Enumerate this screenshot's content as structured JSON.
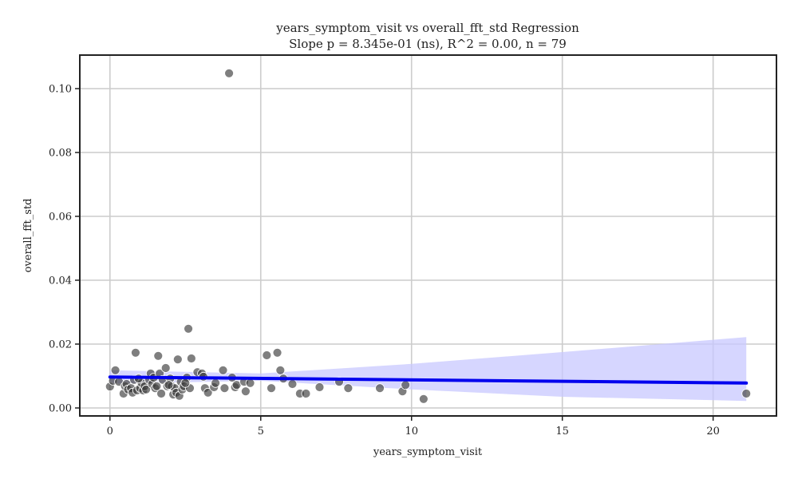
{
  "chart_data": {
    "type": "scatter",
    "title": "years_symptom_visit vs overall_fft_std Regression",
    "subtitle": "Slope p = 8.345e-01 (ns), R^2 = 0.00, n = 79",
    "xlabel": "years_symptom_visit",
    "ylabel": "overall_fft_std",
    "xlim": [
      -1.0,
      22.1
    ],
    "ylim": [
      -0.0025,
      0.1105
    ],
    "xticks": [
      0,
      5,
      10,
      15,
      20
    ],
    "yticks": [
      0.0,
      0.02,
      0.04,
      0.06,
      0.08,
      0.1
    ],
    "xtick_labels": [
      "0",
      "5",
      "10",
      "15",
      "20"
    ],
    "ytick_labels": [
      "0.00",
      "0.02",
      "0.04",
      "0.06",
      "0.08",
      "0.10"
    ],
    "grid": true,
    "points": [
      [
        0.0,
        0.0067
      ],
      [
        0.1,
        0.0085
      ],
      [
        0.18,
        0.0118
      ],
      [
        0.3,
        0.0082
      ],
      [
        0.45,
        0.0045
      ],
      [
        0.5,
        0.0068
      ],
      [
        0.55,
        0.0075
      ],
      [
        0.6,
        0.0058
      ],
      [
        0.7,
        0.0062
      ],
      [
        0.75,
        0.0048
      ],
      [
        0.8,
        0.0088
      ],
      [
        0.85,
        0.0173
      ],
      [
        0.9,
        0.0055
      ],
      [
        1.0,
        0.0062
      ],
      [
        1.05,
        0.0078
      ],
      [
        1.1,
        0.0055
      ],
      [
        1.15,
        0.0068
      ],
      [
        1.2,
        0.0058
      ],
      [
        1.3,
        0.0088
      ],
      [
        1.35,
        0.0108
      ],
      [
        1.4,
        0.0075
      ],
      [
        1.45,
        0.0095
      ],
      [
        1.5,
        0.0062
      ],
      [
        1.55,
        0.0068
      ],
      [
        1.6,
        0.0163
      ],
      [
        1.65,
        0.0108
      ],
      [
        1.7,
        0.0045
      ],
      [
        1.75,
        0.0088
      ],
      [
        1.85,
        0.0125
      ],
      [
        1.9,
        0.0068
      ],
      [
        2.0,
        0.0092
      ],
      [
        2.05,
        0.0068
      ],
      [
        2.1,
        0.0042
      ],
      [
        2.15,
        0.0062
      ],
      [
        2.2,
        0.0048
      ],
      [
        2.25,
        0.0152
      ],
      [
        2.3,
        0.0038
      ],
      [
        2.35,
        0.0082
      ],
      [
        2.4,
        0.0058
      ],
      [
        2.45,
        0.0068
      ],
      [
        2.55,
        0.0095
      ],
      [
        2.6,
        0.0248
      ],
      [
        2.65,
        0.0062
      ],
      [
        2.7,
        0.0155
      ],
      [
        2.9,
        0.0112
      ],
      [
        3.05,
        0.0108
      ],
      [
        3.1,
        0.0098
      ],
      [
        3.15,
        0.0062
      ],
      [
        3.25,
        0.0048
      ],
      [
        3.45,
        0.0065
      ],
      [
        3.5,
        0.0078
      ],
      [
        3.75,
        0.0118
      ],
      [
        3.8,
        0.0062
      ],
      [
        3.95,
        0.1048
      ],
      [
        4.05,
        0.0095
      ],
      [
        4.15,
        0.0065
      ],
      [
        4.2,
        0.0072
      ],
      [
        4.45,
        0.0082
      ],
      [
        4.5,
        0.0052
      ],
      [
        4.65,
        0.0078
      ],
      [
        5.2,
        0.0165
      ],
      [
        5.35,
        0.0062
      ],
      [
        5.55,
        0.0173
      ],
      [
        5.65,
        0.0118
      ],
      [
        5.75,
        0.0092
      ],
      [
        6.05,
        0.0075
      ],
      [
        6.3,
        0.0045
      ],
      [
        6.5,
        0.0045
      ],
      [
        6.95,
        0.0065
      ],
      [
        7.6,
        0.0082
      ],
      [
        7.9,
        0.0062
      ],
      [
        8.95,
        0.0062
      ],
      [
        9.7,
        0.0052
      ],
      [
        9.8,
        0.0072
      ],
      [
        10.4,
        0.0028
      ],
      [
        21.1,
        0.0045
      ],
      [
        1.95,
        0.0072
      ],
      [
        0.95,
        0.0092
      ],
      [
        2.5,
        0.0078
      ]
    ],
    "regression": {
      "x": [
        0.0,
        21.1
      ],
      "y": [
        0.0097,
        0.0078
      ]
    },
    "confidence_band": {
      "x": [
        0.0,
        5.0,
        10.0,
        15.0,
        21.1
      ],
      "upper": [
        0.0118,
        0.0108,
        0.0138,
        0.0175,
        0.0222
      ],
      "lower": [
        0.0076,
        0.0085,
        0.0058,
        0.0035,
        0.0022
      ]
    },
    "colors": {
      "points": "#3a3a3a",
      "line": "#0000ee",
      "band": "#c8c8ff",
      "grid": "#cccccc",
      "frame": "#222222"
    }
  }
}
